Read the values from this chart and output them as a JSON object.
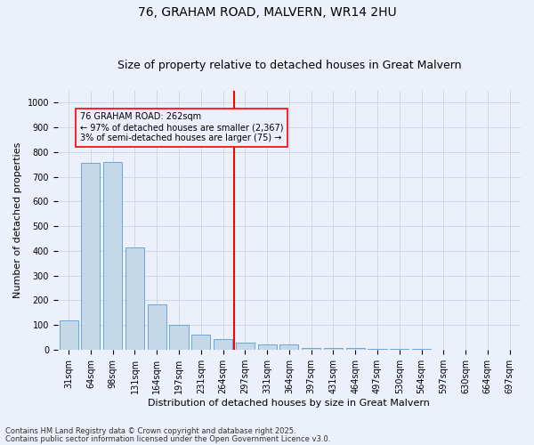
{
  "title1": "76, GRAHAM ROAD, MALVERN, WR14 2HU",
  "title2": "Size of property relative to detached houses in Great Malvern",
  "xlabel": "Distribution of detached houses by size in Great Malvern",
  "ylabel": "Number of detached properties",
  "bar_color": "#C5D8E8",
  "bar_edge_color": "#5B9BD5",
  "grid_color": "#C8D4E8",
  "annotation_text_lines": [
    "76 GRAHAM ROAD: 262sqm",
    "← 97% of detached houses are smaller (2,367)",
    "3% of semi-detached houses are larger (75) →"
  ],
  "categories": [
    "31sqm",
    "64sqm",
    "98sqm",
    "131sqm",
    "164sqm",
    "197sqm",
    "231sqm",
    "264sqm",
    "297sqm",
    "331sqm",
    "364sqm",
    "397sqm",
    "431sqm",
    "464sqm",
    "497sqm",
    "530sqm",
    "564sqm",
    "597sqm",
    "630sqm",
    "664sqm",
    "697sqm"
  ],
  "values": [
    120,
    755,
    760,
    415,
    182,
    100,
    60,
    42,
    28,
    22,
    22,
    5,
    5,
    5,
    3,
    2,
    2,
    1,
    1,
    1,
    1
  ],
  "ylim": [
    0,
    1050
  ],
  "yticks": [
    0,
    100,
    200,
    300,
    400,
    500,
    600,
    700,
    800,
    900,
    1000
  ],
  "footer1": "Contains HM Land Registry data © Crown copyright and database right 2025.",
  "footer2": "Contains public sector information licensed under the Open Government Licence v3.0.",
  "background_color": "#ECF0FA",
  "title_fontsize": 10,
  "subtitle_fontsize": 9,
  "tick_fontsize": 7,
  "label_fontsize": 8,
  "annotation_fontsize": 7,
  "footer_fontsize": 6
}
